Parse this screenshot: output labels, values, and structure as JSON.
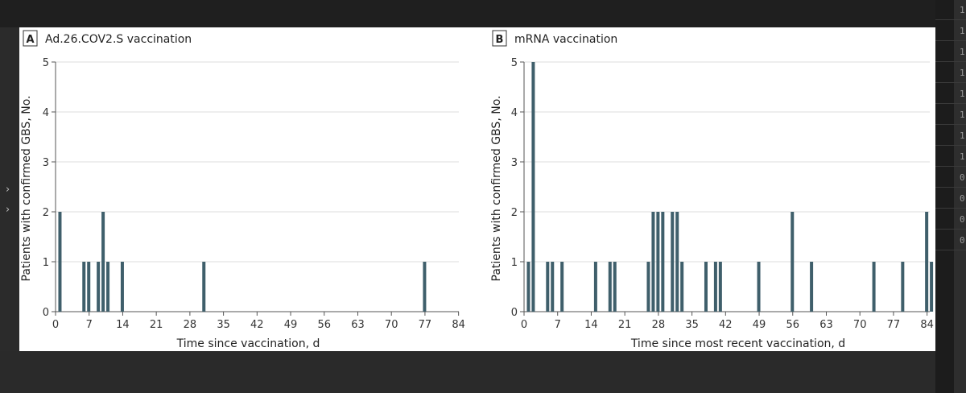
{
  "chart_data": [
    {
      "type": "bar",
      "panel_letter": "A",
      "title": "Ad.26.COV2.S vaccination",
      "xlabel": "Time since vaccination, d",
      "ylabel": "Patients with confirmed GBS, No.",
      "xlim": [
        0,
        84
      ],
      "ylim": [
        0,
        5
      ],
      "x_ticks": [
        0,
        7,
        14,
        21,
        28,
        35,
        42,
        49,
        56,
        63,
        70,
        77,
        84
      ],
      "y_ticks": [
        0,
        1,
        2,
        3,
        4,
        5
      ],
      "grid": "horizontal",
      "color": "#3f5f6b",
      "x": [
        1,
        6,
        7,
        9,
        10,
        11,
        14,
        31,
        77
      ],
      "values": [
        2,
        1,
        1,
        1,
        2,
        1,
        1,
        1,
        1
      ]
    },
    {
      "type": "bar",
      "panel_letter": "B",
      "title": "mRNA vaccination",
      "xlabel": "Time since most recent vaccination, d",
      "ylabel": "Patients with confirmed GBS, No.",
      "xlim": [
        0,
        84
      ],
      "ylim": [
        0,
        5
      ],
      "x_ticks": [
        0,
        7,
        14,
        21,
        28,
        35,
        42,
        49,
        56,
        63,
        70,
        77,
        84
      ],
      "y_ticks": [
        0,
        1,
        2,
        3,
        4,
        5
      ],
      "grid": "horizontal",
      "color": "#3f5f6b",
      "x": [
        1,
        2,
        5,
        6,
        8,
        15,
        18,
        19,
        26,
        27,
        28,
        29,
        31,
        32,
        33,
        38,
        40,
        41,
        49,
        56,
        60,
        73,
        79,
        84,
        85
      ],
      "values": [
        1,
        5,
        1,
        1,
        1,
        1,
        1,
        1,
        1,
        2,
        2,
        2,
        2,
        2,
        1,
        1,
        1,
        1,
        1,
        2,
        1,
        1,
        1,
        2,
        1
      ]
    }
  ],
  "side_panel": {
    "digits": [
      "1",
      "1",
      "1",
      "1",
      "1",
      "1",
      "1",
      "1",
      "0",
      "0",
      "0",
      "0"
    ]
  }
}
